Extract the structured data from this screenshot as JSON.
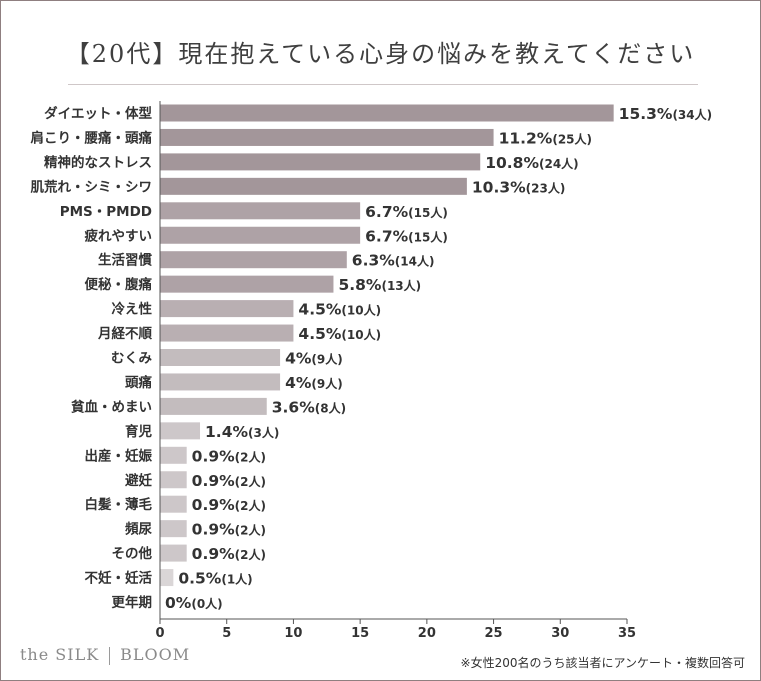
{
  "title": "【20代】現在抱えている心身の悩みを教えてください",
  "brand": {
    "left": "the SILK",
    "right": "BLOOM"
  },
  "footnote": "※女性200名のうち該当者にアンケート・複数回答可",
  "chart_data": {
    "type": "bar",
    "orientation": "horizontal",
    "title": "【20代】現在抱えている心身の悩みを教えてください",
    "xlim": [
      0,
      35
    ],
    "x_ticks": [
      0,
      5,
      10,
      15,
      20,
      25,
      30,
      35
    ],
    "categories": [
      "ダイエット・体型",
      "肩こり・腰痛・頭痛",
      "精神的なストレス",
      "肌荒れ・シミ・シワ",
      "PMS・PMDD",
      "疲れやすい",
      "生活習慣",
      "便秘・腹痛",
      "冷え性",
      "月経不順",
      "むくみ",
      "頭痛",
      "貧血・めまい",
      "育児",
      "出産・妊娠",
      "避妊",
      "白髪・薄毛",
      "頻尿",
      "その他",
      "不妊・妊活",
      "更年期"
    ],
    "values": [
      34,
      25,
      24,
      23,
      15,
      15,
      14,
      13,
      10,
      10,
      9,
      9,
      8,
      3,
      2,
      2,
      2,
      2,
      2,
      1,
      0
    ],
    "percent_labels": [
      "15.3%",
      "11.2%",
      "10.8%",
      "10.3%",
      "6.7%",
      "6.7%",
      "6.3%",
      "5.8%",
      "4.5%",
      "4.5%",
      "4%",
      "4%",
      "3.6%",
      "1.4%",
      "0.9%",
      "0.9%",
      "0.9%",
      "0.9%",
      "0.9%",
      "0.5%",
      "0%"
    ],
    "count_labels": [
      "(34人)",
      "(25人)",
      "(24人)",
      "(23人)",
      "(15人)",
      "(15人)",
      "(14人)",
      "(13人)",
      "(10人)",
      "(10人)",
      "(9人)",
      "(9人)",
      "(8人)",
      "(3人)",
      "(2人)",
      "(2人)",
      "(2人)",
      "(2人)",
      "(2人)",
      "(1人)",
      "(0人)"
    ],
    "colors": [
      "#a3969a",
      "#a3969a",
      "#a3969a",
      "#a3969a",
      "#aea2a6",
      "#aea2a6",
      "#aea2a6",
      "#aea2a6",
      "#b9afb2",
      "#b9afb2",
      "#c3bcbe",
      "#c3bcbe",
      "#c3bcbe",
      "#cdc7c9",
      "#cdc7c9",
      "#cdc7c9",
      "#cdc7c9",
      "#cdc7c9",
      "#cdc7c9",
      "#dad6d7",
      "#dad6d7"
    ],
    "axis_color": "#555555",
    "grid": false
  }
}
